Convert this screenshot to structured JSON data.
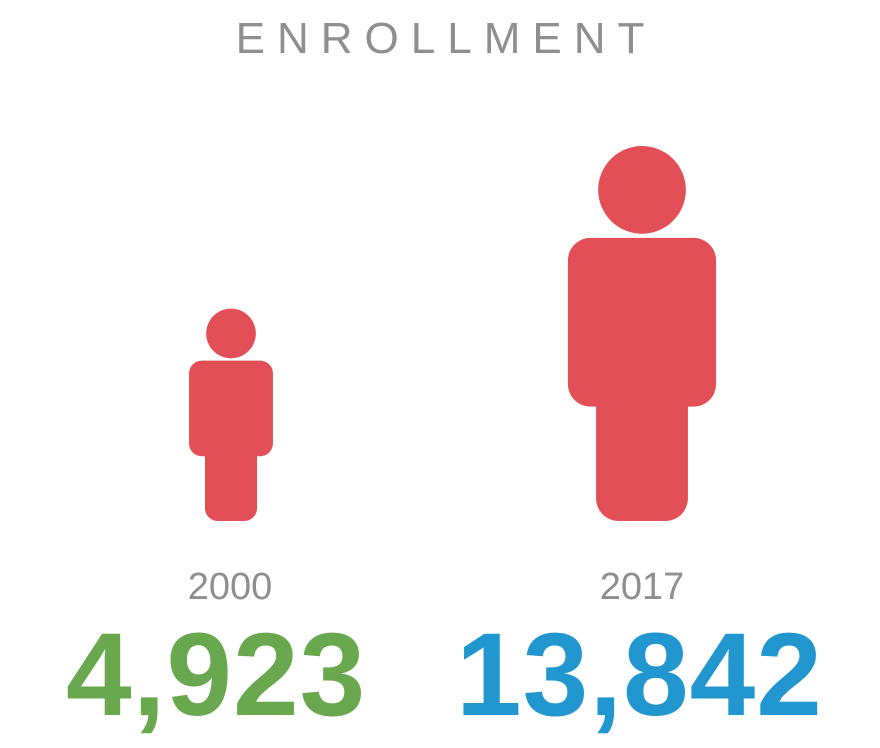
{
  "chart_data": {
    "type": "pictograph",
    "title": "ENROLLMENT",
    "categories": [
      "2000",
      "2017"
    ],
    "values": [
      4923,
      13842
    ],
    "value_labels": [
      "4,923",
      "13,842"
    ],
    "icon": "person-icon",
    "colors": {
      "icon": "#e24f57",
      "value_2000": "#6aa84f",
      "value_2017": "#2196cf",
      "text_gray": "#8f8f8f"
    }
  }
}
